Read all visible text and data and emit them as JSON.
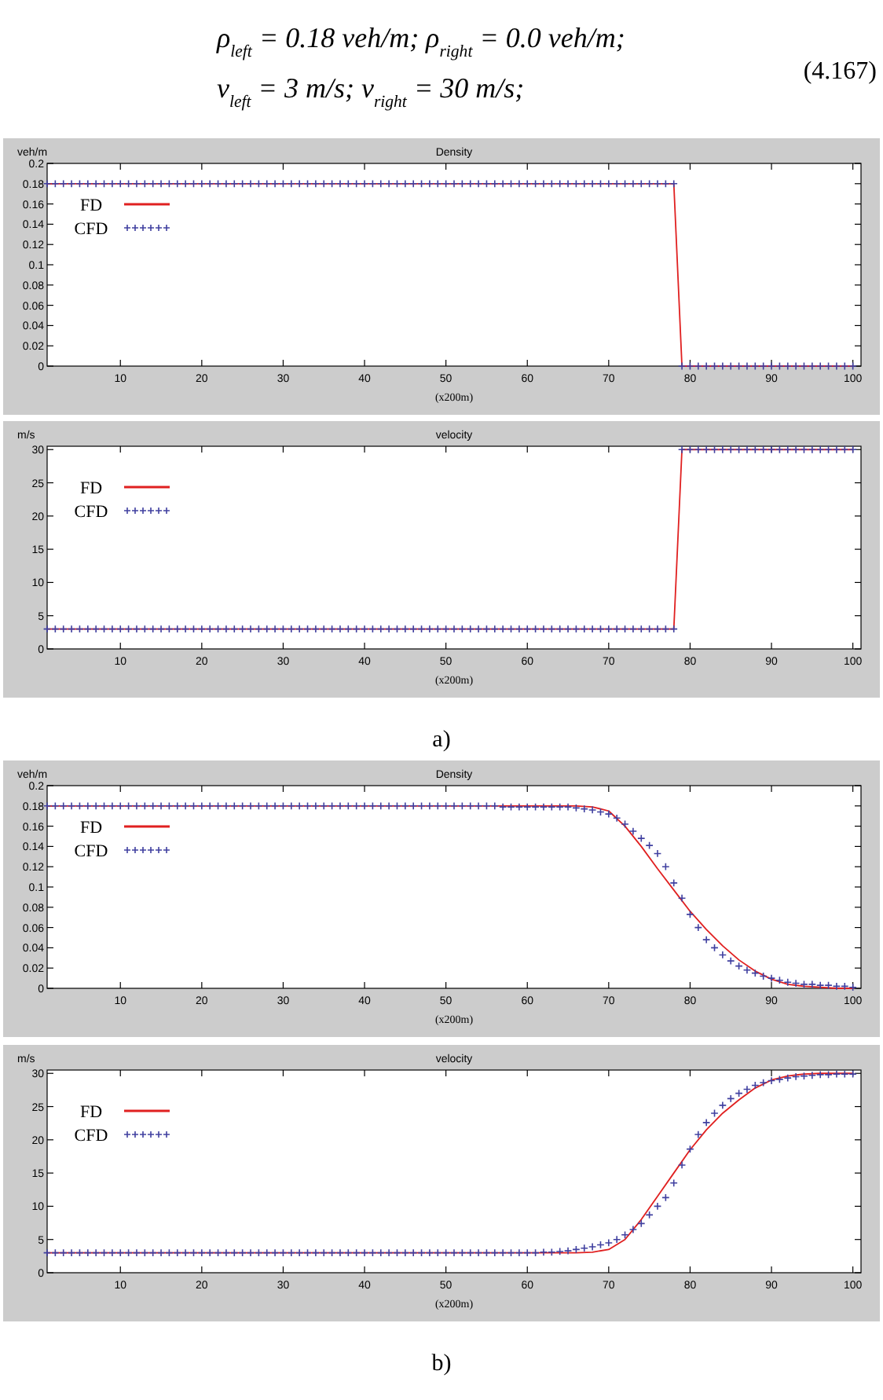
{
  "chart_data": [
    {
      "type": "line",
      "title": "Density",
      "ylabel": "veh/m",
      "xlabel": "(x200m)",
      "legend": "top left",
      "xlim": [
        1,
        101
      ],
      "xticks": [
        10,
        20,
        30,
        40,
        50,
        60,
        70,
        80,
        90,
        100
      ],
      "ylim": [
        0,
        0.2
      ],
      "yticks": [
        0,
        0.02,
        0.04,
        0.06,
        0.08,
        0.1,
        0.12,
        0.14,
        0.16,
        0.18,
        0.2
      ],
      "annotations": [
        "ρ$_{left}$ = 0.18 veh/m; ρ$_{right}$ = 0.0 veh/m;",
        "v$_{left}$ = 3 m/s; v$_{right}$ = 30 m/s;",
        "(4.167)"
      ],
      "x": [
        1,
        2,
        3,
        4,
        5,
        6,
        7,
        8,
        9,
        10,
        11,
        12,
        13,
        14,
        15,
        16,
        17,
        18,
        19,
        20,
        21,
        22,
        23,
        24,
        25,
        26,
        27,
        28,
        29,
        30,
        31,
        32,
        33,
        34,
        35,
        36,
        37,
        38,
        39,
        40,
        41,
        42,
        43,
        44,
        45,
        46,
        47,
        48,
        49,
        50,
        51,
        52,
        53,
        54,
        55,
        56,
        57,
        58,
        59,
        60,
        61,
        62,
        63,
        64,
        65,
        66,
        67,
        68,
        69,
        70,
        71,
        72,
        73,
        74,
        75,
        76,
        77,
        78,
        79,
        80,
        81,
        82,
        83,
        84,
        85,
        86,
        87,
        88,
        89,
        90,
        91,
        92,
        93,
        94,
        95,
        96,
        97,
        98,
        99,
        100
      ],
      "series": [
        {
          "name": "FD",
          "color": "#e02020",
          "marker": "none",
          "line_style": "solid",
          "x": [
            1,
            78,
            79,
            100
          ],
          "values": [
            0.18,
            0.18,
            0,
            0
          ]
        },
        {
          "name": "CFD",
          "type": "scatter",
          "color": "#4040a0",
          "marker": "cross",
          "values": [
            0.18,
            0.18,
            0.18,
            0.18,
            0.18,
            0.18,
            0.18,
            0.18,
            0.18,
            0.18,
            0.18,
            0.18,
            0.18,
            0.18,
            0.18,
            0.18,
            0.18,
            0.18,
            0.18,
            0.18,
            0.18,
            0.18,
            0.18,
            0.18,
            0.18,
            0.18,
            0.18,
            0.18,
            0.18,
            0.18,
            0.18,
            0.18,
            0.18,
            0.18,
            0.18,
            0.18,
            0.18,
            0.18,
            0.18,
            0.18,
            0.18,
            0.18,
            0.18,
            0.18,
            0.18,
            0.18,
            0.18,
            0.18,
            0.18,
            0.18,
            0.18,
            0.18,
            0.18,
            0.18,
            0.18,
            0.18,
            0.18,
            0.18,
            0.18,
            0.18,
            0.18,
            0.18,
            0.18,
            0.18,
            0.18,
            0.18,
            0.18,
            0.18,
            0.18,
            0.18,
            0.18,
            0.18,
            0.18,
            0.18,
            0.18,
            0.18,
            0.18,
            0.18,
            0,
            0,
            0,
            0,
            0,
            0,
            0,
            0,
            0,
            0,
            0,
            0,
            0,
            0,
            0,
            0,
            0,
            0,
            0,
            0,
            0,
            0
          ]
        }
      ]
    },
    {
      "type": "line",
      "title": "velocity",
      "ylabel": "m/s",
      "xlabel": "(x200m)",
      "legend": "top left",
      "xlim": [
        1,
        101
      ],
      "xticks": [
        10,
        20,
        30,
        40,
        50,
        60,
        70,
        80,
        90,
        100
      ],
      "ylim": [
        0,
        30.5
      ],
      "yticks": [
        0,
        5,
        10,
        15,
        20,
        25,
        30
      ],
      "annotations": [
        "a)"
      ],
      "x": [
        1,
        2,
        3,
        4,
        5,
        6,
        7,
        8,
        9,
        10,
        11,
        12,
        13,
        14,
        15,
        16,
        17,
        18,
        19,
        20,
        21,
        22,
        23,
        24,
        25,
        26,
        27,
        28,
        29,
        30,
        31,
        32,
        33,
        34,
        35,
        36,
        37,
        38,
        39,
        40,
        41,
        42,
        43,
        44,
        45,
        46,
        47,
        48,
        49,
        50,
        51,
        52,
        53,
        54,
        55,
        56,
        57,
        58,
        59,
        60,
        61,
        62,
        63,
        64,
        65,
        66,
        67,
        68,
        69,
        70,
        71,
        72,
        73,
        74,
        75,
        76,
        77,
        78,
        79,
        80,
        81,
        82,
        83,
        84,
        85,
        86,
        87,
        88,
        89,
        90,
        91,
        92,
        93,
        94,
        95,
        96,
        97,
        98,
        99,
        100
      ],
      "series": [
        {
          "name": "FD",
          "color": "#e02020",
          "marker": "none",
          "line_style": "solid",
          "x": [
            1,
            78,
            79,
            100
          ],
          "values": [
            3,
            3,
            30,
            30
          ]
        },
        {
          "name": "CFD",
          "type": "scatter",
          "color": "#4040a0",
          "marker": "cross",
          "values": [
            3,
            3,
            3,
            3,
            3,
            3,
            3,
            3,
            3,
            3,
            3,
            3,
            3,
            3,
            3,
            3,
            3,
            3,
            3,
            3,
            3,
            3,
            3,
            3,
            3,
            3,
            3,
            3,
            3,
            3,
            3,
            3,
            3,
            3,
            3,
            3,
            3,
            3,
            3,
            3,
            3,
            3,
            3,
            3,
            3,
            3,
            3,
            3,
            3,
            3,
            3,
            3,
            3,
            3,
            3,
            3,
            3,
            3,
            3,
            3,
            3,
            3,
            3,
            3,
            3,
            3,
            3,
            3,
            3,
            3,
            3,
            3,
            3,
            3,
            3,
            3,
            3,
            3,
            30,
            30,
            30,
            30,
            30,
            30,
            30,
            30,
            30,
            30,
            30,
            30,
            30,
            30,
            30,
            30,
            30,
            30,
            30,
            30,
            30,
            30
          ]
        }
      ]
    },
    {
      "type": "line",
      "title": "Density",
      "ylabel": "veh/m",
      "xlabel": "(x200m)",
      "legend": "top left",
      "xlim": [
        1,
        101
      ],
      "xticks": [
        10,
        20,
        30,
        40,
        50,
        60,
        70,
        80,
        90,
        100
      ],
      "ylim": [
        0,
        0.2
      ],
      "yticks": [
        0,
        0.02,
        0.04,
        0.06,
        0.08,
        0.1,
        0.12,
        0.14,
        0.16,
        0.18,
        0.2
      ],
      "x": [
        1,
        2,
        3,
        4,
        5,
        6,
        7,
        8,
        9,
        10,
        11,
        12,
        13,
        14,
        15,
        16,
        17,
        18,
        19,
        20,
        21,
        22,
        23,
        24,
        25,
        26,
        27,
        28,
        29,
        30,
        31,
        32,
        33,
        34,
        35,
        36,
        37,
        38,
        39,
        40,
        41,
        42,
        43,
        44,
        45,
        46,
        47,
        48,
        49,
        50,
        51,
        52,
        53,
        54,
        55,
        56,
        57,
        58,
        59,
        60,
        61,
        62,
        63,
        64,
        65,
        66,
        67,
        68,
        69,
        70,
        71,
        72,
        73,
        74,
        75,
        76,
        77,
        78,
        79,
        80,
        81,
        82,
        83,
        84,
        85,
        86,
        87,
        88,
        89,
        90,
        91,
        92,
        93,
        94,
        95,
        96,
        97,
        98,
        99,
        100
      ],
      "series": [
        {
          "name": "FD",
          "color": "#e02020",
          "marker": "none",
          "line_style": "solid",
          "x": [
            1,
            60,
            66,
            68,
            70,
            72,
            74,
            76,
            78,
            80,
            82,
            84,
            86,
            88,
            90,
            92,
            94,
            96,
            98,
            100
          ],
          "values": [
            0.18,
            0.18,
            0.18,
            0.179,
            0.175,
            0.16,
            0.14,
            0.118,
            0.097,
            0.076,
            0.058,
            0.042,
            0.028,
            0.017,
            0.009,
            0.004,
            0.002,
            0.001,
            0,
            0
          ]
        },
        {
          "name": "CFD",
          "type": "scatter",
          "color": "#4040a0",
          "marker": "cross",
          "values": [
            0.18,
            0.18,
            0.18,
            0.18,
            0.18,
            0.18,
            0.18,
            0.18,
            0.18,
            0.18,
            0.18,
            0.18,
            0.18,
            0.18,
            0.18,
            0.18,
            0.18,
            0.18,
            0.18,
            0.18,
            0.18,
            0.18,
            0.18,
            0.18,
            0.18,
            0.18,
            0.18,
            0.18,
            0.18,
            0.18,
            0.18,
            0.18,
            0.18,
            0.18,
            0.18,
            0.18,
            0.18,
            0.18,
            0.18,
            0.18,
            0.18,
            0.18,
            0.18,
            0.18,
            0.18,
            0.18,
            0.18,
            0.18,
            0.18,
            0.18,
            0.18,
            0.18,
            0.18,
            0.18,
            0.18,
            0.18,
            0.179,
            0.179,
            0.179,
            0.179,
            0.179,
            0.179,
            0.179,
            0.179,
            0.179,
            0.178,
            0.177,
            0.176,
            0.174,
            0.172,
            0.168,
            0.162,
            0.155,
            0.148,
            0.141,
            0.133,
            0.12,
            0.104,
            0.089,
            0.073,
            0.06,
            0.048,
            0.04,
            0.033,
            0.027,
            0.022,
            0.018,
            0.015,
            0.012,
            0.01,
            0.008,
            0.006,
            0.005,
            0.004,
            0.004,
            0.003,
            0.003,
            0.002,
            0.002,
            0.001
          ]
        }
      ]
    },
    {
      "type": "line",
      "title": "velocity",
      "ylabel": "m/s",
      "xlabel": "(x200m)",
      "legend": "top left",
      "xlim": [
        1,
        101
      ],
      "xticks": [
        10,
        20,
        30,
        40,
        50,
        60,
        70,
        80,
        90,
        100
      ],
      "ylim": [
        0,
        30.5
      ],
      "yticks": [
        0,
        5,
        10,
        15,
        20,
        25,
        30
      ],
      "annotations": [
        "b)"
      ],
      "x": [
        1,
        2,
        3,
        4,
        5,
        6,
        7,
        8,
        9,
        10,
        11,
        12,
        13,
        14,
        15,
        16,
        17,
        18,
        19,
        20,
        21,
        22,
        23,
        24,
        25,
        26,
        27,
        28,
        29,
        30,
        31,
        32,
        33,
        34,
        35,
        36,
        37,
        38,
        39,
        40,
        41,
        42,
        43,
        44,
        45,
        46,
        47,
        48,
        49,
        50,
        51,
        52,
        53,
        54,
        55,
        56,
        57,
        58,
        59,
        60,
        61,
        62,
        63,
        64,
        65,
        66,
        67,
        68,
        69,
        70,
        71,
        72,
        73,
        74,
        75,
        76,
        77,
        78,
        79,
        80,
        81,
        82,
        83,
        84,
        85,
        86,
        87,
        88,
        89,
        90,
        91,
        92,
        93,
        94,
        95,
        96,
        97,
        98,
        99,
        100
      ],
      "series": [
        {
          "name": "FD",
          "color": "#e02020",
          "marker": "none",
          "line_style": "solid",
          "x": [
            1,
            66,
            68,
            70,
            72,
            74,
            76,
            78,
            80,
            82,
            84,
            86,
            88,
            90,
            92,
            94,
            96,
            98,
            100
          ],
          "values": [
            3,
            3,
            3.1,
            3.5,
            5,
            8,
            11.5,
            15,
            18.5,
            21.5,
            24,
            26,
            27.8,
            29,
            29.6,
            29.9,
            30,
            30,
            30
          ]
        },
        {
          "name": "CFD",
          "type": "scatter",
          "color": "#4040a0",
          "marker": "cross",
          "values": [
            3,
            3,
            3,
            3,
            3,
            3,
            3,
            3,
            3,
            3,
            3,
            3,
            3,
            3,
            3,
            3,
            3,
            3,
            3,
            3,
            3,
            3,
            3,
            3,
            3,
            3,
            3,
            3,
            3,
            3,
            3,
            3,
            3,
            3,
            3,
            3,
            3,
            3,
            3,
            3,
            3,
            3,
            3,
            3,
            3,
            3,
            3,
            3,
            3,
            3,
            3,
            3,
            3,
            3,
            3,
            3,
            3,
            3,
            3,
            3,
            3,
            3.1,
            3.1,
            3.2,
            3.3,
            3.5,
            3.7,
            3.9,
            4.2,
            4.5,
            5,
            5.7,
            6.5,
            7.4,
            8.7,
            10,
            11.3,
            13.5,
            16.2,
            18.6,
            20.8,
            22.6,
            24,
            25.2,
            26.2,
            27,
            27.6,
            28.2,
            28.6,
            28.9,
            29.1,
            29.3,
            29.5,
            29.6,
            29.7,
            29.8,
            29.8,
            29.9,
            29.9,
            29.9
          ]
        }
      ]
    }
  ]
}
